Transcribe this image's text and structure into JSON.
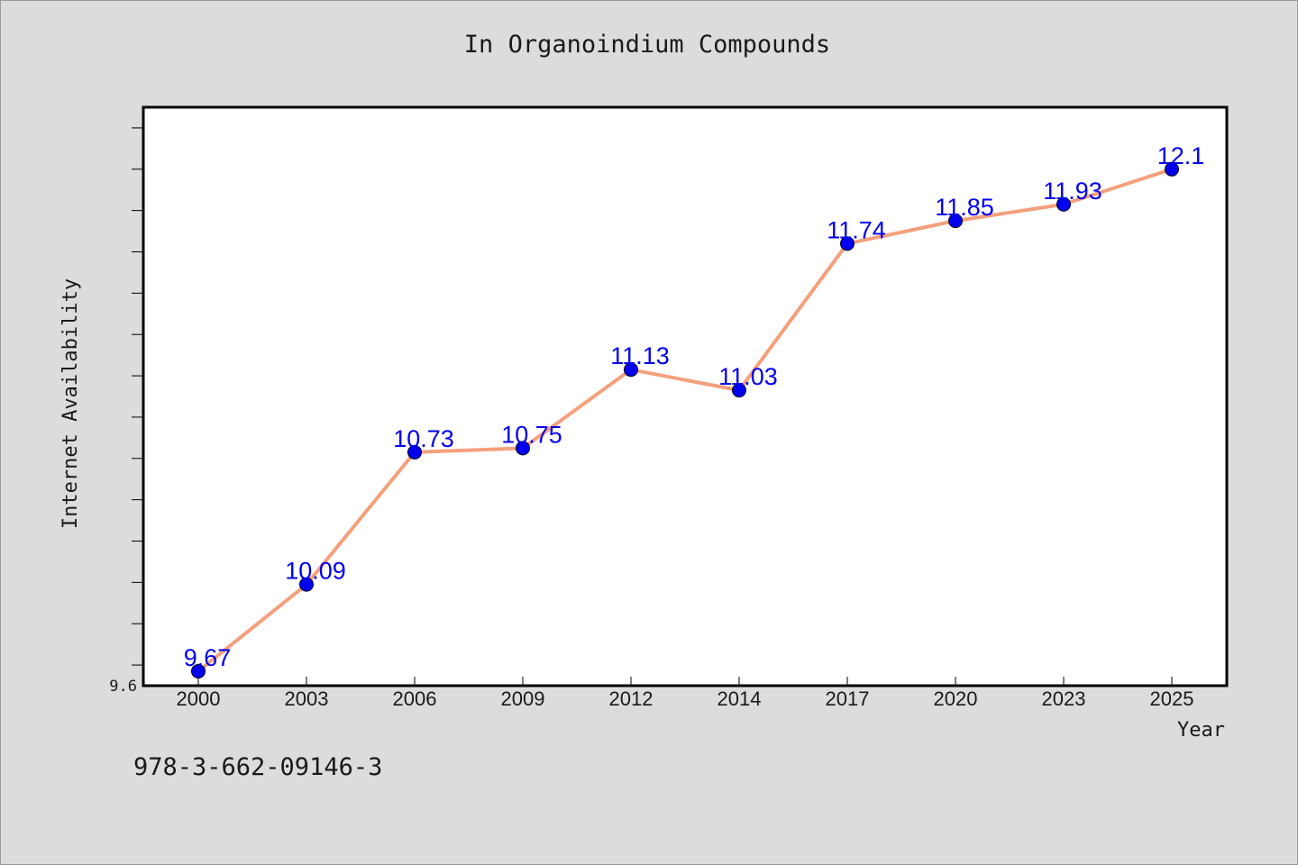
{
  "caption": "978-3-662-09146-3",
  "chart_data": {
    "type": "line",
    "title": "In Organoindium Compounds",
    "xlabel": "Year",
    "ylabel": "Internet Availability",
    "categories": [
      "2000",
      "2003",
      "2006",
      "2009",
      "2012",
      "2014",
      "2017",
      "2020",
      "2023",
      "2025"
    ],
    "series": [
      {
        "values": [
          9.67,
          10.09,
          10.73,
          10.75,
          11.13,
          11.03,
          11.74,
          11.85,
          11.93,
          12.1
        ],
        "labels": [
          "9.67",
          "10.09",
          "10.73",
          "10.75",
          "11.13",
          "11.03",
          "11.74",
          "11.85",
          "11.93",
          "12.1"
        ]
      }
    ],
    "ylim": [
      9.6,
      12.4
    ],
    "y_tick_labels": [
      "9.6"
    ],
    "grid": false,
    "colors": {
      "line": "#f4a07c",
      "marker": "#0000ee",
      "data_label": "#0000ee"
    }
  }
}
